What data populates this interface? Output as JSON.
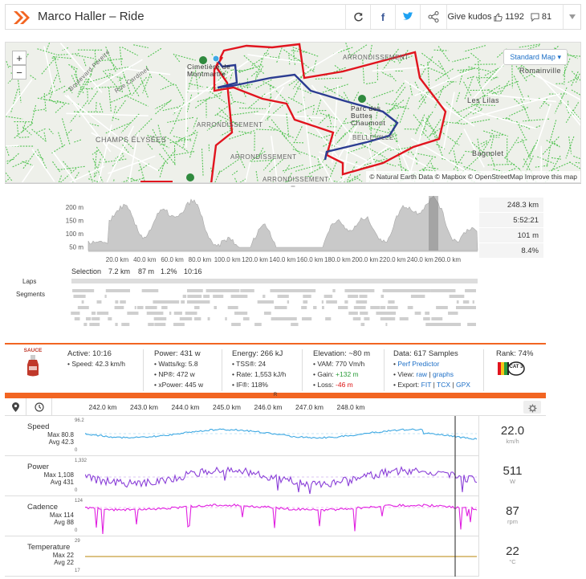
{
  "header": {
    "title": "Marco Haller – Ride",
    "kudos_label": "Give kudos",
    "kudos_count": "1192",
    "comment_count": "81"
  },
  "map": {
    "zoom_in": "+",
    "zoom_out": "−",
    "style_select": "Standard Map",
    "attribution": "© Natural Earth Data © Mapbox © OpenStreetMap Improve this map",
    "labels": {
      "a": "ARRONDISSEMENT",
      "b": "ARRONDISSEMENT",
      "c": "BELLEVILLE",
      "d": "CHAMPS ÉLYSÉES",
      "e": "Romainville",
      "f": "Les Lilas",
      "g": "Bagnolet",
      "h": "Parc des Buttes Chaumont",
      "i": "Cimetière de Montmartre",
      "j": "Boulevard Pereire",
      "k": "Rue Cardinet",
      "l": "ARRONDISSEMENT",
      "m": "ARRONDISSEMENT"
    }
  },
  "elevation": {
    "yticks": [
      "200 m",
      "150 m",
      "100 m",
      "50 m"
    ],
    "xticks": [
      "20.0 km",
      "40.0 km",
      "60.0 km",
      "80.0 km",
      "100.0 km",
      "120.0 km",
      "140.0 km",
      "160.0 km",
      "180.0 km",
      "200.0 km",
      "220.0 km",
      "240.0 km",
      "260.0 km"
    ],
    "stats": [
      "248.3 km",
      "5:52:21",
      "101 m",
      "8.4%"
    ],
    "selection": {
      "label": "Selection",
      "dist": "7.2 km",
      "elev": "87 m",
      "grade": "1.2%",
      "time": "10:16"
    },
    "laps_label": "Laps",
    "segments_label": "Segments"
  },
  "info": {
    "sauce": "SAUCE",
    "active": {
      "title": "Active: 10:16",
      "speed": "• Speed: 42.3 km/h"
    },
    "power": {
      "title": "Power: 431 w",
      "wkg": "• Watts/kg: 5.8",
      "np": "• NP®: 472 w",
      "xp": "• xPower: 445 w"
    },
    "energy": {
      "title": "Energy: 266 kJ",
      "tss": "• TSS®: 24",
      "rate": "• Rate: 1,553 kJ/h",
      "if": "• IF®: 118%"
    },
    "elevation": {
      "title": "Elevation: ~80 m",
      "vam": "• VAM: 770 Vm/h",
      "gain_label": "• Gain:",
      "gain": "+132 m",
      "loss_label": "• Loss:",
      "loss": "-46 m"
    },
    "data": {
      "title": "Data: 617 Samples",
      "perf": "Perf Predictor",
      "view_label": "• View:",
      "raw": "raw",
      "graphs": "graphs",
      "export_label": "• Export:",
      "fit": "FIT",
      "tcx": "TCX",
      "gpx": "GPX"
    },
    "rank": {
      "title": "Rank: 74%",
      "badge": "CAT 3"
    }
  },
  "detail": {
    "drag": "R",
    "xticks": [
      "242.0 km",
      "243.0 km",
      "244.0 km",
      "245.0 km",
      "246.0 km",
      "247.0 km",
      "248.0 km"
    ],
    "panels": [
      {
        "name": "Speed",
        "max": "Max 80.8",
        "avg": "Avg 42.3",
        "top": "96.2",
        "bottom": "0",
        "value": "22.0",
        "unit": "km/h",
        "color": "#3fa9e3"
      },
      {
        "name": "Power",
        "max": "Max 1,108",
        "avg": "Avg 431",
        "top": "1,332",
        "bottom": "0",
        "value": "511",
        "unit": "W",
        "color": "#8a3fd8"
      },
      {
        "name": "Cadence",
        "max": "Max 114",
        "avg": "Avg 88",
        "top": "124",
        "bottom": "0",
        "value": "87",
        "unit": "rpm",
        "color": "#e020e0"
      },
      {
        "name": "Temperature",
        "max": "Max 22",
        "avg": "Avg 22",
        "top": "29",
        "bottom": "17",
        "value": "22",
        "unit": "°C",
        "color": "#b8860b"
      }
    ]
  },
  "colors": {
    "accent": "#f26522",
    "route": "#e1141e",
    "selection": "#2b3c91",
    "speed": "#3fa9e3",
    "power": "#8a3fd8",
    "cadence": "#e020e0",
    "temperature": "#b8860b",
    "link": "#1d6fc7"
  }
}
